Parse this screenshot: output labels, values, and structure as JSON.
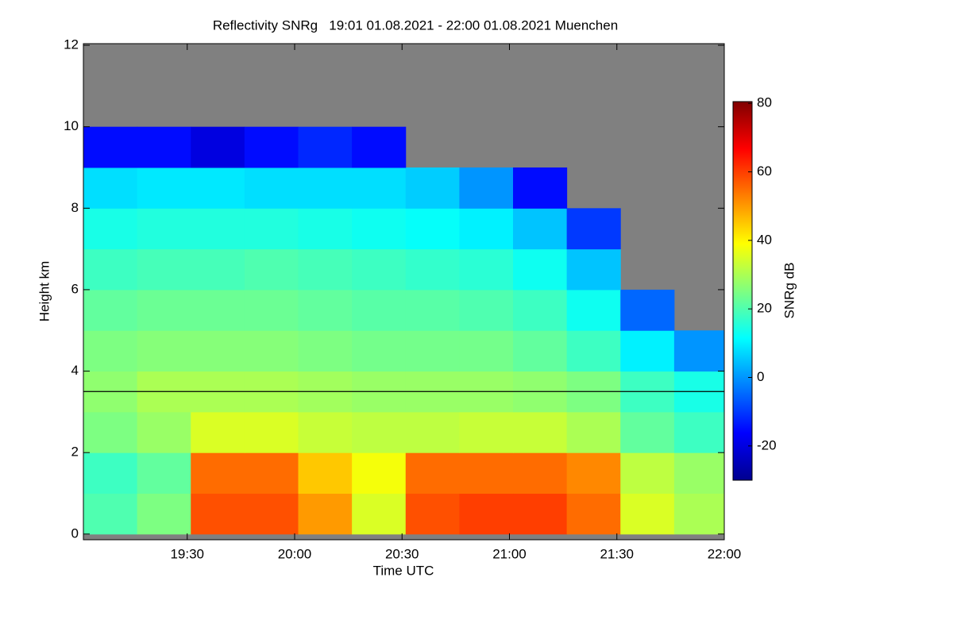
{
  "chart_data": {
    "type": "heatmap",
    "title": "Reflectivity SNRg   19:01 01.08.2021 - 22:00 01.08.2021 Muenchen",
    "x_label": "Time UTC",
    "y_label": "Height km",
    "colorbar_label": "SNRg dB",
    "xlim": [
      1141,
      1320
    ],
    "ylim": [
      -0.14,
      12.04
    ],
    "zlim": [
      -30,
      80.5
    ],
    "xticks": [
      {
        "value": 1170,
        "label": "19:30"
      },
      {
        "value": 1200,
        "label": "20:00"
      },
      {
        "value": 1230,
        "label": "20:30"
      },
      {
        "value": 1260,
        "label": "21:00"
      },
      {
        "value": 1290,
        "label": "21:30"
      },
      {
        "value": 1320,
        "label": "22:00"
      }
    ],
    "yticks": [
      0,
      2,
      4,
      6,
      8,
      10,
      12
    ],
    "zticks": [
      -20,
      0,
      20,
      40,
      60,
      80
    ],
    "hline": 3.5,
    "x_bins": [
      1141,
      1156,
      1171,
      1186,
      1201,
      1216,
      1231,
      1246,
      1261,
      1276,
      1291,
      1306,
      1320
    ],
    "y_bins": [
      0,
      1,
      2,
      3,
      4,
      5,
      6,
      7,
      8,
      9,
      10,
      11,
      12
    ],
    "z": [
      [
        20,
        25,
        58,
        58,
        50,
        35,
        58,
        60,
        60,
        55,
        35,
        30
      ],
      [
        18,
        22,
        55,
        55,
        45,
        38,
        55,
        55,
        55,
        52,
        32,
        28
      ],
      [
        25,
        28,
        35,
        35,
        33,
        32,
        32,
        33,
        33,
        30,
        22,
        18
      ],
      [
        27,
        30,
        30,
        30,
        29,
        28,
        28,
        28,
        27,
        25,
        18,
        14
      ],
      [
        25,
        26,
        26,
        26,
        25,
        24,
        24,
        24,
        22,
        18,
        10,
        0
      ],
      [
        22,
        23,
        23,
        23,
        22,
        21,
        21,
        20,
        18,
        13,
        -5,
        null
      ],
      [
        18,
        19,
        19,
        20,
        19,
        18,
        17,
        16,
        13,
        5,
        null,
        null
      ],
      [
        14,
        15,
        15,
        15,
        14,
        13,
        12,
        10,
        5,
        -10,
        null,
        null
      ],
      [
        8,
        9,
        9,
        8,
        8,
        8,
        6,
        0,
        -15,
        null,
        null,
        null
      ],
      [
        -15,
        -15,
        -20,
        -15,
        -12,
        -15,
        null,
        null,
        null,
        null,
        null,
        null
      ],
      [
        null,
        null,
        null,
        null,
        null,
        null,
        null,
        null,
        null,
        null,
        null,
        null
      ],
      [
        null,
        null,
        null,
        null,
        null,
        null,
        null,
        null,
        null,
        null,
        null,
        null
      ]
    ]
  }
}
